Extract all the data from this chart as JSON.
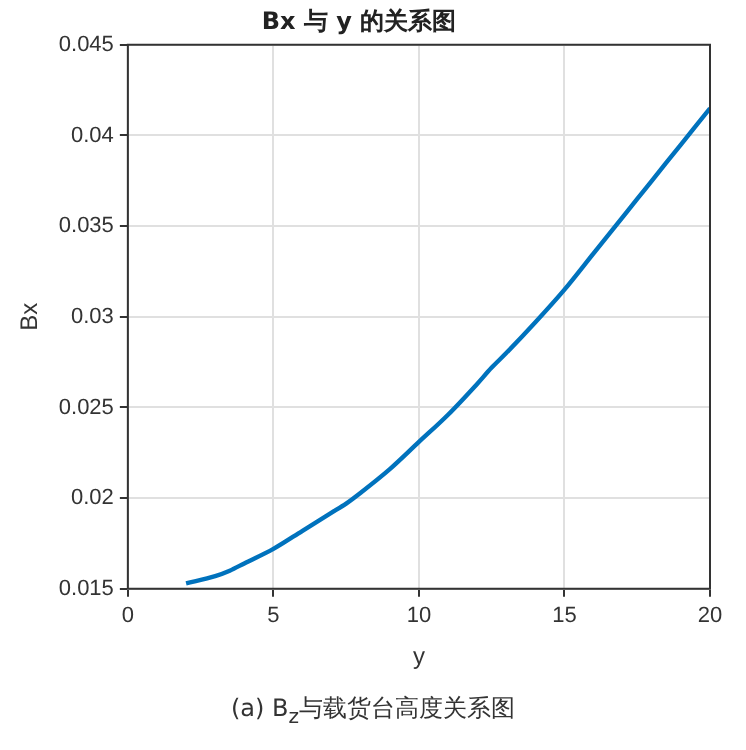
{
  "chart_data": {
    "type": "line",
    "title": "Bx 与 y 的关系图",
    "xlabel": "y",
    "ylabel": "Bx",
    "x": [
      2,
      3,
      3.5,
      4,
      5,
      6,
      7,
      7.5,
      8,
      9,
      10,
      11,
      12,
      12.5,
      13,
      14,
      15,
      16,
      17,
      17.5,
      18,
      19,
      20
    ],
    "series": [
      {
        "color": "#0072bd",
        "values": [
          0.0153,
          0.0157,
          0.016,
          0.0164,
          0.0172,
          0.0182,
          0.0192,
          0.0197,
          0.0203,
          0.0216,
          0.0231,
          0.0246,
          0.0263,
          0.0272,
          0.028,
          0.0297,
          0.0315,
          0.0335,
          0.0355,
          0.0365,
          0.0375,
          0.0395,
          0.0415
        ]
      }
    ],
    "xlim": [
      0,
      20
    ],
    "xticks": [
      0,
      5,
      10,
      15,
      20
    ],
    "ylim": [
      0.015,
      0.045
    ],
    "yticks": [
      0.015,
      0.02,
      0.025,
      0.03,
      0.035,
      0.04,
      0.045
    ],
    "grid": true,
    "legend": false,
    "marker": "none",
    "line_style": "solid",
    "annotations": [
      "(a) B$_{z}$与载货台高度关系图"
    ]
  }
}
